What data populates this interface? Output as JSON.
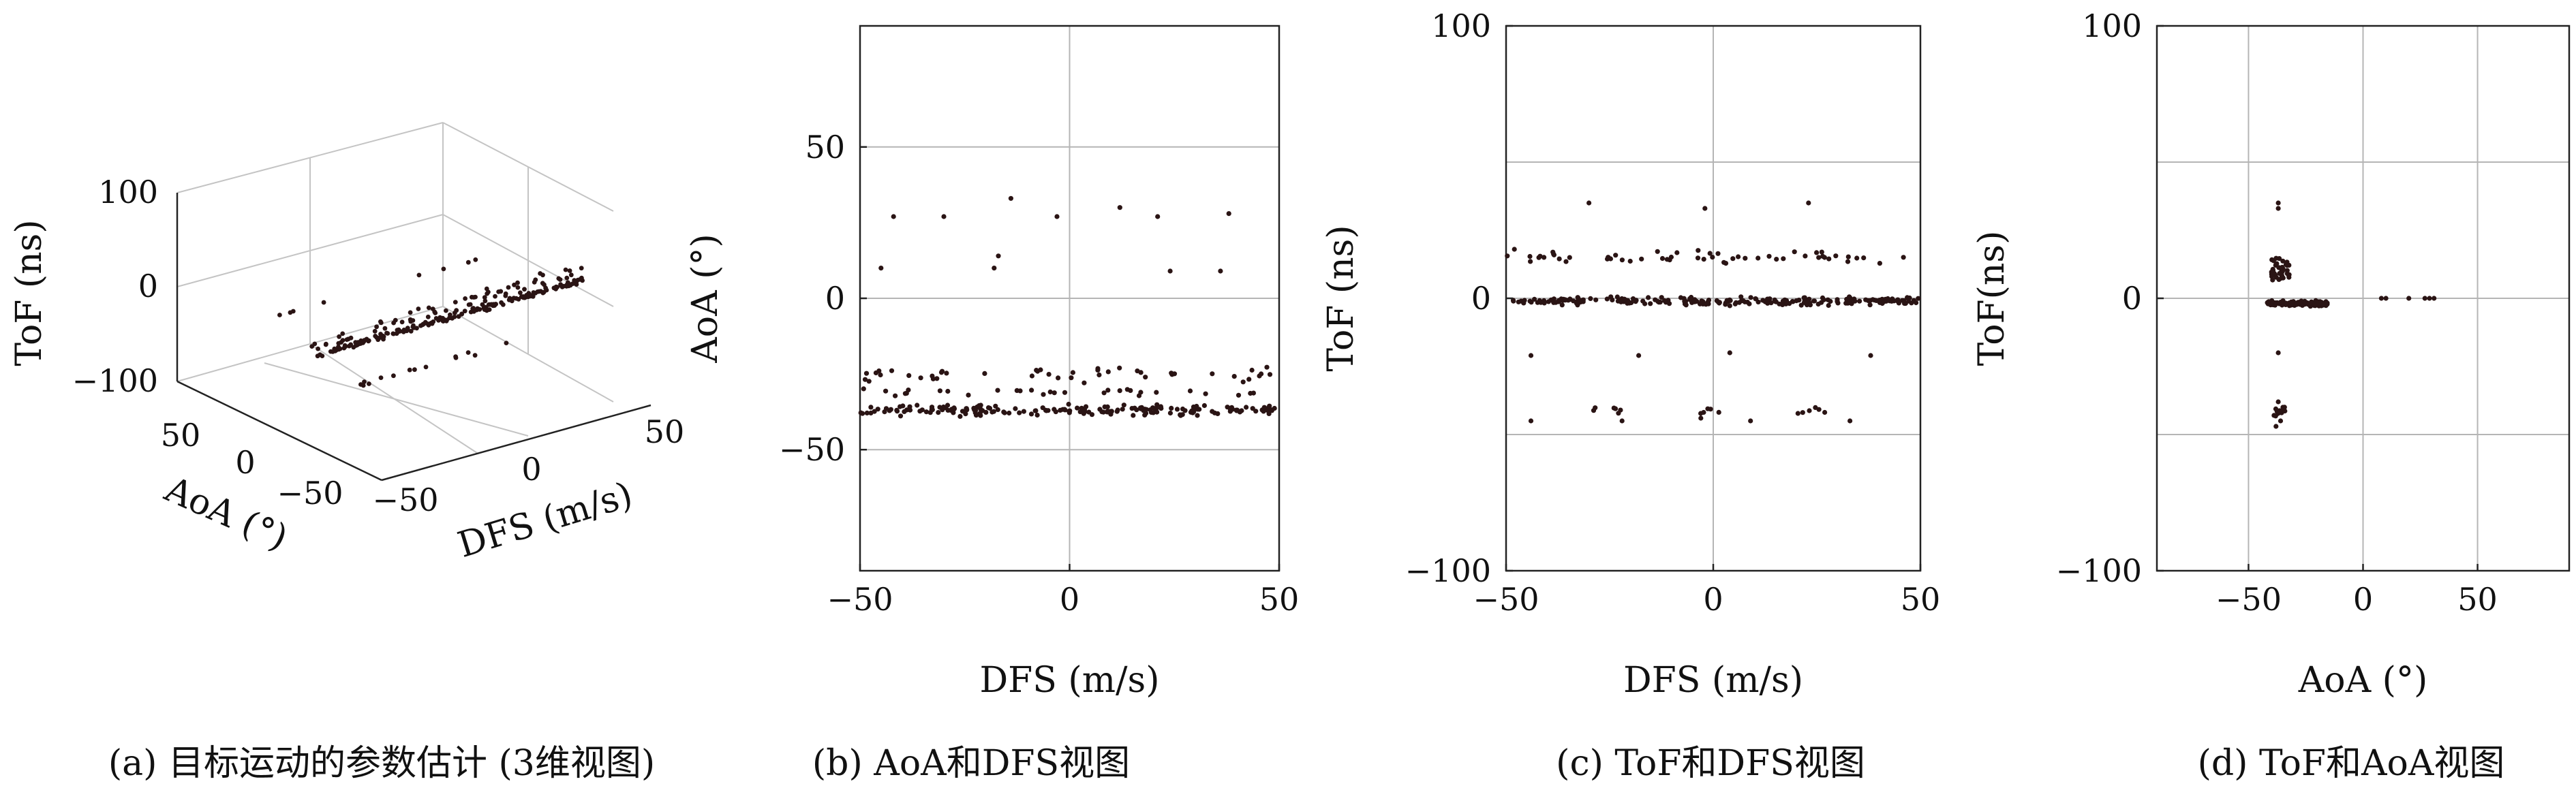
{
  "chart_data": [
    {
      "type": "scatter",
      "dimensions": 3,
      "caption": "(a) 目标运动的参数估计 (3维视图)",
      "xlabel": "DFS (m/s)",
      "ylabel": "AoA (°)",
      "zlabel": "ToF (ns)",
      "xlim": [
        -50,
        50
      ],
      "ylim": [
        -100,
        100
      ],
      "zlim": [
        -100,
        100
      ],
      "xticks": [
        "−50",
        "0",
        "50"
      ],
      "yticks": [
        "50",
        "0",
        "−50"
      ],
      "zticks": [
        "100",
        "0",
        "−100"
      ],
      "grid": true,
      "clusters": [
        {
          "x_range": [
            -50,
            50
          ],
          "y": -37,
          "z": 0,
          "spread_y": 4,
          "spread_z": 3,
          "count": 170
        },
        {
          "x_range": [
            -50,
            50
          ],
          "y": -27,
          "z": 0,
          "spread_y": 5,
          "spread_z": 4,
          "count": 40
        },
        {
          "x_range": [
            -50,
            50
          ],
          "y": -37,
          "z": 15,
          "spread_y": 5,
          "spread_z": 7,
          "count": 30
        },
        {
          "x_range": [
            -35,
            25
          ],
          "y": -37,
          "z": -45,
          "spread_y": 4,
          "spread_z": 4,
          "count": 14
        },
        {
          "x_range": [
            -45,
            40
          ],
          "y": 27,
          "z": 0,
          "spread_y": 3,
          "spread_z": 3,
          "count": 8
        }
      ]
    },
    {
      "type": "scatter",
      "caption": "(b) AoA和DFS视图",
      "xlabel": "DFS (m/s)",
      "ylabel": "AoA (°)",
      "xlim": [
        -50,
        50
      ],
      "ylim": [
        -90,
        90
      ],
      "xticks": [
        -50,
        0,
        50
      ],
      "yticks": [
        -50,
        0,
        50
      ],
      "xtick_labels": [
        "−50",
        "0",
        "50"
      ],
      "ytick_labels": [
        "−50",
        "0",
        "50"
      ],
      "grid": true,
      "points": [
        [
          -42,
          27
        ],
        [
          -30,
          27
        ],
        [
          -14,
          33
        ],
        [
          -3,
          27
        ],
        [
          12,
          30
        ],
        [
          21,
          27
        ],
        [
          38,
          28
        ],
        [
          -45,
          10
        ],
        [
          -18,
          10
        ],
        [
          -17,
          14
        ],
        [
          24,
          9
        ],
        [
          36,
          9
        ]
      ],
      "clusters": [
        {
          "x_range": [
            -50,
            50
          ],
          "y": -37,
          "spread": 2.5,
          "count": 190
        },
        {
          "x_range": [
            -50,
            50
          ],
          "y": -25,
          "spread": 3.5,
          "count": 45
        },
        {
          "x_range": [
            -50,
            50
          ],
          "y": -31,
          "spread": 2,
          "count": 30
        }
      ]
    },
    {
      "type": "scatter",
      "caption": "(c) ToF和DFS视图",
      "xlabel": "DFS (m/s)",
      "ylabel": "ToF (ns)",
      "xlim": [
        -50,
        50
      ],
      "ylim": [
        -100,
        100
      ],
      "xticks": [
        -50,
        0,
        50
      ],
      "yticks": [
        -100,
        0,
        100
      ],
      "xtick_labels": [
        "−50",
        "0",
        "50"
      ],
      "ytick_labels": [
        "−100",
        "0",
        "100"
      ],
      "grid": true,
      "points": [
        [
          -48,
          18
        ],
        [
          -30,
          35
        ],
        [
          -2,
          33
        ],
        [
          23,
          35
        ],
        [
          -44,
          -21
        ],
        [
          -18,
          -21
        ],
        [
          4,
          -20
        ],
        [
          38,
          -21
        ],
        [
          -44,
          -45
        ],
        [
          -22,
          -45
        ],
        [
          -3,
          -44
        ],
        [
          9,
          -45
        ],
        [
          33,
          -45
        ]
      ],
      "clusters": [
        {
          "x_range": [
            -50,
            50
          ],
          "y": -1,
          "spread": 2,
          "count": 230
        },
        {
          "x_range": [
            -50,
            50
          ],
          "y": 15,
          "spread": 3,
          "count": 55
        },
        {
          "x_range": [
            -30,
            -22
          ],
          "y": -41,
          "spread": 3,
          "count": 6
        },
        {
          "x_range": [
            -5,
            2
          ],
          "y": -41,
          "spread": 3,
          "count": 5
        },
        {
          "x_range": [
            20,
            27
          ],
          "y": -41,
          "spread": 3,
          "count": 6
        }
      ]
    },
    {
      "type": "scatter",
      "caption": "(d) ToF和AoA视图",
      "xlabel": "AoA (°)",
      "ylabel": "ToF(ns)",
      "xlim": [
        -90,
        90
      ],
      "ylim": [
        -100,
        100
      ],
      "xticks": [
        -50,
        0,
        50
      ],
      "yticks": [
        -100,
        0,
        100
      ],
      "xtick_labels": [
        "−50",
        "0",
        "50"
      ],
      "ytick_labels": [
        "−100",
        "0",
        "100"
      ],
      "grid": true,
      "points": [
        [
          8,
          0
        ],
        [
          10,
          0
        ],
        [
          20,
          0
        ],
        [
          27,
          0
        ],
        [
          29,
          0
        ],
        [
          31,
          0
        ],
        [
          -37,
          35
        ],
        [
          -37,
          33
        ],
        [
          -37,
          -20
        ],
        [
          -36,
          -45
        ],
        [
          -38,
          -47
        ],
        [
          -37,
          -38
        ],
        [
          -35,
          -40
        ]
      ],
      "clusters": [
        {
          "x_range": [
            -42,
            -15
          ],
          "y": -2,
          "spread": 1.5,
          "count": 110
        },
        {
          "x_range": [
            -40,
            -32
          ],
          "y": 10,
          "spread": 7,
          "count": 40
        },
        {
          "x_range": [
            -39,
            -34
          ],
          "y": -42,
          "spread": 3,
          "count": 12
        }
      ]
    }
  ]
}
